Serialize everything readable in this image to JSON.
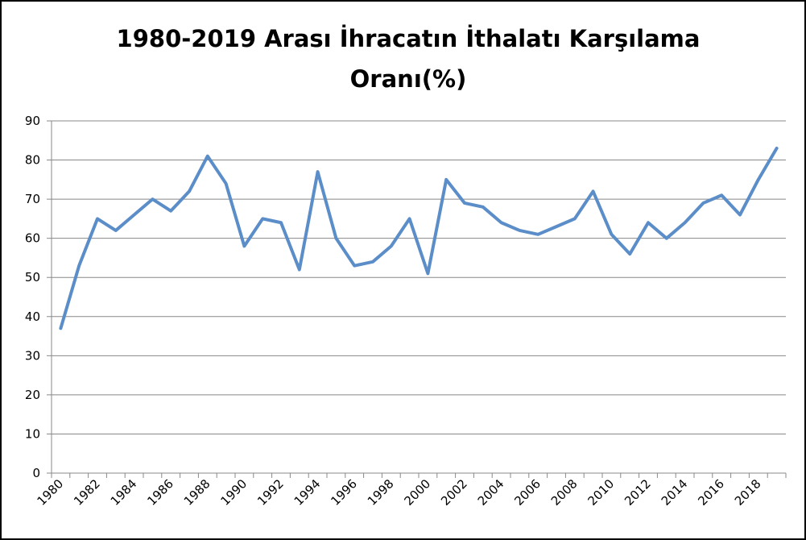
{
  "chart_data": {
    "type": "line",
    "title": [
      "1980-2019 Arası İhracatın İthalatı Karşılama",
      "Oranı(%)"
    ],
    "categories": [
      "1980",
      null,
      "1982",
      null,
      "1984",
      null,
      "1986",
      null,
      "1988",
      null,
      "1990",
      null,
      "1992",
      null,
      "1994",
      null,
      "1996",
      null,
      "1998",
      null,
      "2000",
      null,
      "2002",
      null,
      "2004",
      null,
      "2006",
      null,
      "2008",
      null,
      "2010",
      null,
      "2012",
      null,
      "2014",
      null,
      "2016",
      null,
      "2018",
      null
    ],
    "series": [
      {
        "color": "#5b8ec8",
        "values": [
          37,
          53,
          65,
          62,
          66,
          70,
          67,
          72,
          81,
          74,
          58,
          65,
          64,
          52,
          77,
          60,
          53,
          54,
          58,
          65,
          51,
          75,
          69,
          68,
          64,
          62,
          61,
          63,
          65,
          72,
          61,
          56,
          64,
          60,
          64,
          69,
          71,
          66,
          75,
          83
        ]
      }
    ],
    "ylim": [
      0,
      90
    ],
    "yticks": [
      0,
      10,
      20,
      30,
      40,
      50,
      60,
      70,
      80,
      90
    ],
    "grid": true
  }
}
